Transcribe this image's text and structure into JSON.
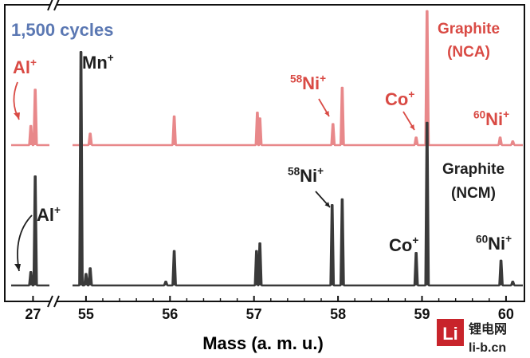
{
  "chart_data": {
    "type": "line",
    "title": "1,500 cycles",
    "xlabel": "Mass (a. m. u.)",
    "ylabel": "",
    "xlim_break": {
      "left_segment": [
        26.8,
        27.15
      ],
      "right_segment": [
        54.65,
        60.2
      ]
    },
    "xticks": [
      {
        "value": 27,
        "label": "27"
      },
      {
        "value": 55,
        "label": "55"
      },
      {
        "value": 56,
        "label": "56"
      },
      {
        "value": 57,
        "label": "57"
      },
      {
        "value": 58,
        "label": "58"
      },
      {
        "value": 59,
        "label": "59"
      },
      {
        "value": 60,
        "label": "60"
      }
    ],
    "ylim": [
      0,
      100
    ],
    "series": [
      {
        "name": "Graphite (NCA)",
        "label_line1": "Graphite",
        "label_line2": "(NCA)",
        "color": "#e8888a",
        "label_color": "#d94a44",
        "peaks": [
          {
            "x": 26.98,
            "y": 10
          },
          {
            "x": 27.02,
            "y": 29
          },
          {
            "x": 55.05,
            "y": 6
          },
          {
            "x": 56.05,
            "y": 15
          },
          {
            "x": 57.04,
            "y": 17
          },
          {
            "x": 57.07,
            "y": 14
          },
          {
            "x": 57.94,
            "y": 11
          },
          {
            "x": 58.05,
            "y": 30
          },
          {
            "x": 58.93,
            "y": 4
          },
          {
            "x": 59.06,
            "y": 72
          },
          {
            "x": 59.93,
            "y": 4
          },
          {
            "x": 60.08,
            "y": 2
          }
        ]
      },
      {
        "name": "Graphite (NCM)",
        "label_line1": "Graphite",
        "label_line2": "(NCM)",
        "color": "#3a3a3a",
        "label_color": "#1f1f1f",
        "peaks": [
          {
            "x": 26.98,
            "y": 7
          },
          {
            "x": 27.02,
            "y": 57
          },
          {
            "x": 54.94,
            "y": 122
          },
          {
            "x": 55.0,
            "y": 6
          },
          {
            "x": 55.05,
            "y": 9
          },
          {
            "x": 55.95,
            "y": 2
          },
          {
            "x": 56.05,
            "y": 18
          },
          {
            "x": 57.03,
            "y": 18
          },
          {
            "x": 57.07,
            "y": 22
          },
          {
            "x": 57.93,
            "y": 42
          },
          {
            "x": 58.05,
            "y": 45
          },
          {
            "x": 58.93,
            "y": 17
          },
          {
            "x": 59.06,
            "y": 85
          },
          {
            "x": 59.94,
            "y": 13
          },
          {
            "x": 60.08,
            "y": 2
          }
        ]
      }
    ],
    "annotations": {
      "nca": [
        {
          "base": "Al",
          "sup": "+"
        },
        {
          "base": "Ni",
          "pre": "58",
          "sup": "+"
        },
        {
          "base": "Co",
          "sup": "+"
        },
        {
          "base": "Ni",
          "pre": "60",
          "sup": "+"
        }
      ],
      "ncm": [
        {
          "base": "Mn",
          "sup": "+"
        },
        {
          "base": "Al",
          "sup": "+"
        },
        {
          "base": "Ni",
          "pre": "58",
          "sup": "+"
        },
        {
          "base": "Co",
          "sup": "+"
        },
        {
          "base": "Ni",
          "pre": "60",
          "sup": "+"
        }
      ]
    },
    "title_color": "#5b78b3"
  },
  "watermark": {
    "logo_letters": "Li",
    "site_name": "锂电网",
    "domain": "li-b.cn",
    "brand_color": "#c8242b"
  }
}
